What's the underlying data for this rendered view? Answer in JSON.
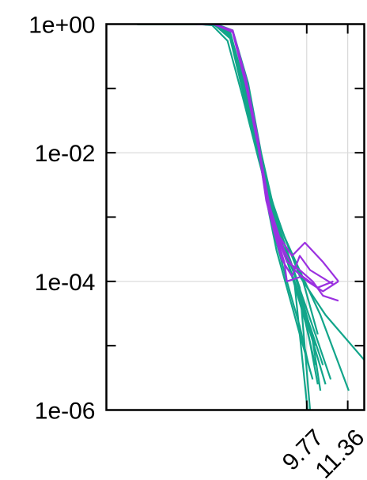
{
  "chart_data": {
    "type": "line",
    "title": "",
    "xlabel": "",
    "ylabel": "",
    "y_scale": "log",
    "ylim": [
      1e-06,
      1
    ],
    "xlim": [
      2.0,
      12.0
    ],
    "grid": true,
    "y_ticks": [
      {
        "value": 1,
        "label": "1e+00"
      },
      {
        "value": 0.01,
        "label": "1e-02"
      },
      {
        "value": 0.0001,
        "label": "1e-04"
      },
      {
        "value": 1e-06,
        "label": "1e-06"
      }
    ],
    "y_minor_ticks": [
      0.1,
      0.001,
      1e-05
    ],
    "x_ticks": [
      {
        "value": 9.77,
        "label": "9.77"
      },
      {
        "value": 11.36,
        "label": "11.36"
      }
    ],
    "colors": {
      "teal": "#12a58a",
      "purple": "#9b30e0"
    },
    "series": [
      {
        "color": "#12a58a",
        "x": [
          3.2,
          5.6,
          6.2,
          6.8,
          7.4,
          8.0,
          8.3,
          8.6,
          9.0,
          9.5,
          9.9
        ],
        "y": [
          1,
          0.998,
          0.98,
          0.7,
          0.08,
          0.007,
          0.0015,
          0.0004,
          0.0001,
          2e-05,
          4e-06
        ]
      },
      {
        "color": "#12a58a",
        "x": [
          3.2,
          5.6,
          6.2,
          6.8,
          7.4,
          8.0,
          8.3,
          8.6,
          9.0,
          9.5,
          10.0
        ],
        "y": [
          1,
          0.998,
          0.97,
          0.6,
          0.06,
          0.006,
          0.0012,
          0.0003,
          8e-05,
          1.5e-05,
          3e-06
        ]
      },
      {
        "color": "#12a58a",
        "x": [
          3.2,
          5.6,
          6.1,
          6.7,
          7.3,
          7.9,
          8.3,
          8.7,
          9.2,
          9.7,
          10.1
        ],
        "y": [
          1,
          0.997,
          0.96,
          0.55,
          0.07,
          0.008,
          0.002,
          0.0005,
          0.00012,
          2.5e-05,
          5e-06
        ]
      },
      {
        "color": "#12a58a",
        "x": [
          3.2,
          5.6,
          6.2,
          6.8,
          7.4,
          8.0,
          8.4,
          8.8,
          9.3,
          9.8,
          10.2
        ],
        "y": [
          1,
          0.998,
          0.98,
          0.75,
          0.1,
          0.009,
          0.0018,
          0.0004,
          9e-05,
          1.8e-05,
          2.5e-06
        ]
      },
      {
        "color": "#12a58a",
        "x": [
          3.2,
          5.6,
          6.3,
          6.9,
          7.5,
          8.0,
          8.4,
          8.8,
          9.4,
          10.0,
          10.3
        ],
        "y": [
          1,
          0.999,
          0.985,
          0.8,
          0.12,
          0.01,
          0.002,
          0.0005,
          0.0001,
          1.2e-05,
          2e-06
        ]
      },
      {
        "color": "#12a58a",
        "x": [
          3.2,
          5.6,
          6.2,
          6.8,
          7.4,
          8.0,
          8.4,
          8.9,
          9.5,
          10.1
        ],
        "y": [
          1,
          0.998,
          0.97,
          0.65,
          0.07,
          0.007,
          0.0016,
          0.0004,
          7e-05,
          1e-05
        ]
      },
      {
        "color": "#12a58a",
        "x": [
          3.2,
          5.6,
          6.2,
          6.8,
          7.4,
          8.0,
          8.3,
          8.7,
          9.3,
          9.9,
          10.4
        ],
        "y": [
          1,
          0.998,
          0.975,
          0.7,
          0.09,
          0.008,
          0.0017,
          0.00045,
          0.0001,
          2e-05,
          5e-06
        ]
      },
      {
        "color": "#12a58a",
        "x": [
          3.2,
          5.6,
          6.2,
          6.8,
          7.4,
          8.0,
          8.4,
          8.9,
          9.6,
          10.2
        ],
        "y": [
          1,
          0.998,
          0.98,
          0.72,
          0.09,
          0.008,
          0.0018,
          0.0005,
          0.00011,
          1.5e-05
        ]
      },
      {
        "color": "#12a58a",
        "x": [
          3.2,
          5.6,
          6.2,
          6.8,
          7.4,
          8.0,
          8.4,
          8.8,
          9.3,
          9.8
        ],
        "y": [
          1,
          0.998,
          0.975,
          0.68,
          0.08,
          0.0075,
          0.0016,
          0.0004,
          9e-05,
          1e-06
        ]
      },
      {
        "color": "#12a58a",
        "x": [
          3.2,
          5.6,
          6.2,
          6.8,
          7.4,
          8.0,
          8.4,
          8.9,
          9.5,
          9.9
        ],
        "y": [
          1,
          0.998,
          0.97,
          0.62,
          0.075,
          0.007,
          0.0015,
          0.0004,
          8e-05,
          1e-06
        ]
      },
      {
        "color": "#12a58a",
        "x": [
          3.2,
          5.6,
          6.2,
          6.8,
          7.4,
          8.0,
          8.4,
          8.9,
          9.6,
          10.3,
          11.4
        ],
        "y": [
          1,
          0.998,
          0.98,
          0.7,
          0.09,
          0.008,
          0.0017,
          0.0005,
          0.00012,
          3e-05,
          2e-06
        ]
      },
      {
        "color": "#12a58a",
        "x": [
          3.2,
          5.6,
          6.2,
          6.8,
          7.4,
          8.0,
          8.4,
          8.9,
          9.5,
          10.5,
          12.0
        ],
        "y": [
          1,
          0.998,
          0.98,
          0.72,
          0.1,
          0.009,
          0.0019,
          0.0005,
          0.00012,
          3e-05,
          6e-06
        ]
      },
      {
        "color": "#12a58a",
        "x": [
          3.2,
          5.6,
          6.2,
          6.8,
          7.4,
          8.0,
          8.4,
          8.8,
          9.4,
          10.0,
          10.7
        ],
        "y": [
          1,
          0.998,
          0.975,
          0.68,
          0.085,
          0.008,
          0.0016,
          0.0004,
          0.0001,
          2e-05,
          3e-06
        ]
      },
      {
        "color": "#12a58a",
        "x": [
          3.2,
          5.6,
          6.2,
          6.8,
          7.4,
          8.0,
          8.4,
          8.8,
          9.3,
          9.8,
          10.5
        ],
        "y": [
          1,
          0.998,
          0.975,
          0.66,
          0.08,
          0.0075,
          0.0016,
          0.0004,
          9e-05,
          2.2e-05,
          2.5e-06
        ]
      },
      {
        "color": "#9b30e0",
        "x": [
          5.5,
          6.2,
          6.9,
          7.4,
          7.9,
          8.2,
          8.5,
          8.9,
          9.3,
          9.8,
          10.4,
          11.0
        ],
        "y": [
          1,
          0.99,
          0.8,
          0.15,
          0.015,
          0.002,
          0.0008,
          0.0003,
          0.00015,
          0.0001,
          7e-05,
          0.0001
        ]
      },
      {
        "color": "#9b30e0",
        "x": [
          5.5,
          6.2,
          6.9,
          7.4,
          7.9,
          8.2,
          8.5,
          8.8,
          9.2,
          9.5,
          9.9,
          10.8
        ],
        "y": [
          1,
          0.99,
          0.75,
          0.12,
          0.012,
          0.0018,
          0.0006,
          0.00022,
          0.00012,
          0.00025,
          0.00015,
          9e-05
        ]
      },
      {
        "color": "#9b30e0",
        "x": [
          5.5,
          6.2,
          6.9,
          7.4,
          7.9,
          8.3,
          8.6,
          9.0,
          9.5,
          10.0,
          10.4,
          11.0
        ],
        "y": [
          1,
          0.99,
          0.78,
          0.13,
          0.013,
          0.0017,
          0.00055,
          0.0002,
          0.00015,
          0.0001,
          6e-05,
          5e-05
        ]
      },
      {
        "color": "#9b30e0",
        "x": [
          5.5,
          6.2,
          6.9,
          7.4,
          7.9,
          8.3,
          8.6,
          8.9,
          9.0,
          9.6,
          10.2,
          10.8
        ],
        "y": [
          1,
          0.99,
          0.77,
          0.12,
          0.012,
          0.0016,
          0.0005,
          0.0002,
          0.0001,
          0.00012,
          8e-05,
          0.0001
        ]
      },
      {
        "color": "#9b30e0",
        "x": [
          5.5,
          6.2,
          6.9,
          7.4,
          7.9,
          8.3,
          8.7,
          9.2,
          9.7,
          10.4,
          11.0
        ],
        "y": [
          1,
          0.99,
          0.76,
          0.12,
          0.012,
          0.0016,
          0.0005,
          0.00025,
          0.0004,
          0.0002,
          0.0001
        ]
      }
    ]
  }
}
